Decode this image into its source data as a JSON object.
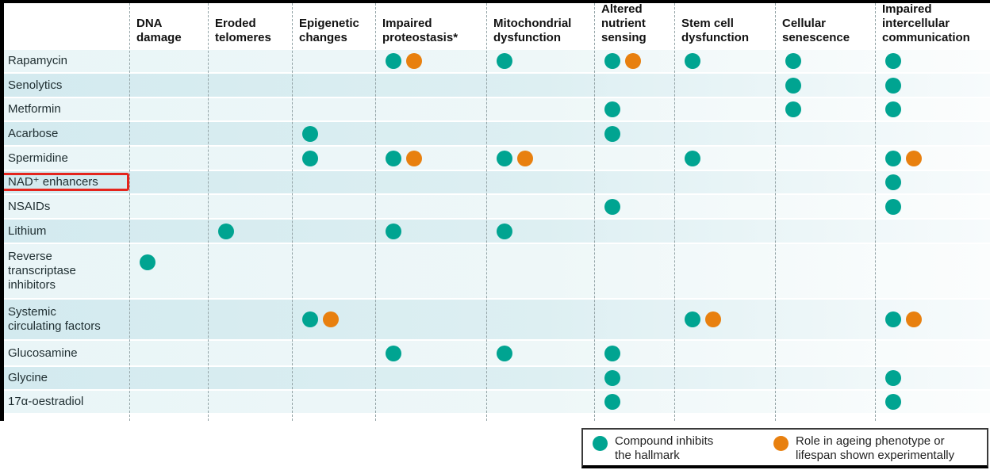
{
  "figure": {
    "columns": [
      "DNA\ndamage",
      "Eroded\ntelomeres",
      "Epigenetic\nchanges",
      "Impaired\nproteostasis*",
      "Mitochondrial\ndysfunction",
      "Altered\nnutrient\nsensing",
      "Stem cell\ndysfunction",
      "Cellular\nsenescence",
      "Impaired\nintercellular\ncommunication"
    ],
    "rows": [
      {
        "label": "Rapamycin",
        "highlighted": false
      },
      {
        "label": "Senolytics",
        "highlighted": false
      },
      {
        "label": "Metformin",
        "highlighted": false
      },
      {
        "label": "Acarbose",
        "highlighted": false
      },
      {
        "label": "Spermidine",
        "highlighted": false
      },
      {
        "label": "NAD⁺ enhancers",
        "highlighted": true
      },
      {
        "label": "NSAIDs",
        "highlighted": false
      },
      {
        "label": "Lithium",
        "highlighted": false
      },
      {
        "label": "Reverse\ntranscriptase\ninhibitors",
        "highlighted": false
      },
      {
        "label": "Systemic\ncirculating factors",
        "highlighted": false
      },
      {
        "label": "Glucosamine",
        "highlighted": false
      },
      {
        "label": "Glycine",
        "highlighted": false
      },
      {
        "label": "17α-oestradiol",
        "highlighted": false
      }
    ],
    "legend": [
      {
        "label": "Compound inhibits\nthe hallmark"
      },
      {
        "label": "Role in ageing phenotype or\nlifespan shown experimentally"
      }
    ],
    "colors": {
      "teal": "#00a491",
      "orange": "#e8800f",
      "highlight_red": "#e4251d"
    }
  },
  "chart_data": {
    "type": "matrix",
    "columns": [
      "DNA damage",
      "Eroded telomeres",
      "Epigenetic changes",
      "Impaired proteostasis*",
      "Mitochondrial dysfunction",
      "Altered nutrient sensing",
      "Stem cell dysfunction",
      "Cellular senescence",
      "Impaired intercellular communication"
    ],
    "rows": [
      "Rapamycin",
      "Senolytics",
      "Metformin",
      "Acarbose",
      "Spermidine",
      "NAD⁺ enhancers",
      "NSAIDs",
      "Lithium",
      "Reverse transcriptase inhibitors",
      "Systemic circulating factors",
      "Glucosamine",
      "Glycine",
      "17α-oestradiol"
    ],
    "values": [
      [
        0,
        0,
        0,
        2,
        1,
        2,
        1,
        1,
        1
      ],
      [
        0,
        0,
        0,
        0,
        0,
        0,
        0,
        1,
        1
      ],
      [
        0,
        0,
        0,
        0,
        0,
        1,
        0,
        1,
        1
      ],
      [
        0,
        0,
        1,
        0,
        0,
        1,
        0,
        0,
        0
      ],
      [
        0,
        0,
        1,
        2,
        2,
        0,
        1,
        0,
        2
      ],
      [
        0,
        0,
        0,
        0,
        0,
        0,
        0,
        0,
        1
      ],
      [
        0,
        0,
        0,
        0,
        0,
        1,
        0,
        0,
        1
      ],
      [
        0,
        1,
        0,
        1,
        1,
        0,
        0,
        0,
        0
      ],
      [
        1,
        0,
        0,
        0,
        0,
        0,
        0,
        0,
        0
      ],
      [
        0,
        0,
        2,
        0,
        0,
        0,
        2,
        0,
        2
      ],
      [
        0,
        0,
        0,
        1,
        1,
        1,
        0,
        0,
        0
      ],
      [
        0,
        0,
        0,
        0,
        0,
        1,
        0,
        0,
        1
      ],
      [
        0,
        0,
        0,
        0,
        0,
        1,
        0,
        0,
        1
      ]
    ],
    "value_legend": {
      "0": "no dot",
      "1": "teal dot — compound inhibits the hallmark",
      "2": "teal + orange dots — inhibits hallmark and role in ageing phenotype or lifespan shown experimentally"
    },
    "highlighted_row": "NAD⁺ enhancers",
    "legend_position": "bottom-right"
  }
}
